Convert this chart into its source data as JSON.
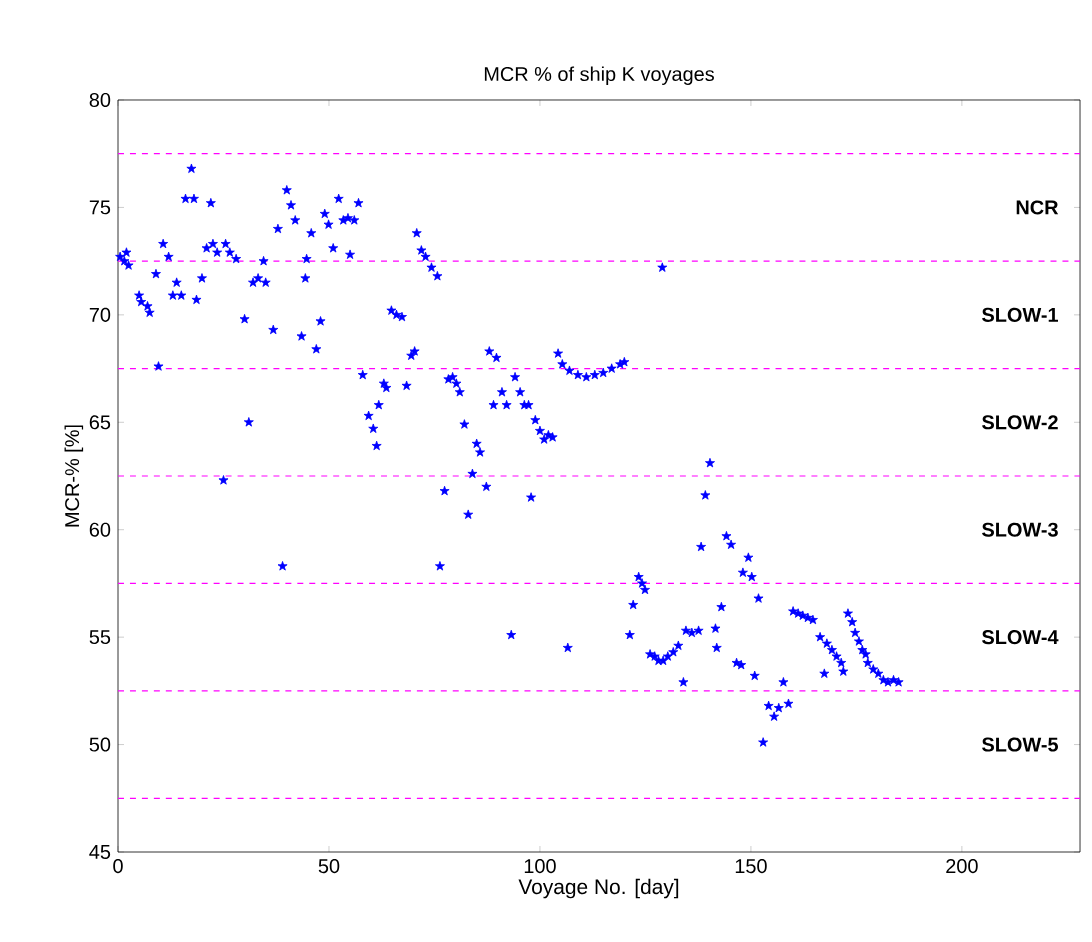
{
  "chart_data": {
    "type": "scatter",
    "title": "MCR % of ship K voyages",
    "xlabel": "Voyage No. [day]",
    "ylabel": "MCR-% [%]",
    "marker": "star",
    "xlim": [
      0,
      228
    ],
    "ylim": [
      45,
      80
    ],
    "xticks": [
      0,
      50,
      100,
      150,
      200
    ],
    "yticks": [
      45,
      50,
      55,
      60,
      65,
      70,
      75,
      80
    ],
    "annotations": [
      "NCR",
      "SLOW-1",
      "SLOW-2",
      "SLOW-3",
      "SLOW-4",
      "SLOW-5"
    ],
    "ref_lines": [
      {
        "axis": "y",
        "value": 77.5,
        "color": "#ff00ff",
        "line_style": "dashed"
      },
      {
        "axis": "y",
        "value": 72.5,
        "color": "#ff00ff",
        "line_style": "dashed"
      },
      {
        "axis": "y",
        "value": 67.5,
        "color": "#ff00ff",
        "line_style": "dashed"
      },
      {
        "axis": "y",
        "value": 62.5,
        "color": "#ff00ff",
        "line_style": "dashed"
      },
      {
        "axis": "y",
        "value": 57.5,
        "color": "#ff00ff",
        "line_style": "dashed"
      },
      {
        "axis": "y",
        "value": 52.5,
        "color": "#ff00ff",
        "line_style": "dashed"
      },
      {
        "axis": "y",
        "value": 47.5,
        "color": "#ff00ff",
        "line_style": "dashed"
      }
    ],
    "series": [
      {
        "color": "#0000ff",
        "x": [
          0.5,
          1.5,
          2.5,
          2,
          5,
          5.5,
          7,
          7.5,
          9,
          9.6,
          10.7,
          12,
          13,
          13.9,
          15,
          16,
          17.4,
          18,
          18.6,
          19.9,
          21,
          22,
          22.5,
          23.5,
          25,
          25.5,
          26.5,
          28,
          30,
          31,
          32,
          33.2,
          34.5,
          35,
          36.8,
          37.9,
          39,
          40,
          41,
          42,
          43.5,
          44.4,
          44.7,
          45.8,
          47,
          48,
          49,
          49.9,
          51,
          52.3,
          53.4,
          54.5,
          55,
          56,
          57,
          58,
          59.4,
          60.5,
          61.3,
          61.8,
          63,
          63.6,
          64.8,
          66,
          67.3,
          68.4,
          69.5,
          70.3,
          70.8,
          71.9,
          72.9,
          74.3,
          75.7,
          76.3,
          77.4,
          78.3,
          79.3,
          80.2,
          81,
          82.1,
          83,
          84,
          85,
          85.8,
          87.3,
          88,
          89,
          89.7,
          91,
          92.1,
          93.2,
          94.1,
          95.3,
          96.3,
          97.3,
          97.9,
          98.9,
          100,
          101,
          102,
          103,
          104.3,
          105.3,
          106.6,
          107,
          109,
          111,
          113,
          115,
          117,
          119,
          120,
          121.3,
          122.1,
          123.4,
          124.2,
          124.9,
          126.1,
          127.2,
          128.1,
          129,
          129.2,
          130.3,
          131.6,
          132.8,
          134,
          134.6,
          136,
          137.6,
          138.2,
          139.2,
          140.3,
          141.6,
          141.9,
          143,
          144.2,
          145.3,
          146.6,
          147.7,
          148.1,
          149.4,
          150.2,
          150.9,
          151.8,
          152.9,
          154.2,
          155.5,
          156.6,
          157.7,
          158.9,
          160,
          161.2,
          162.3,
          163.5,
          164.7,
          166.4,
          167.4,
          168,
          169.2,
          170.3,
          171.4,
          171.9,
          173,
          174,
          174.7,
          175.6,
          176.4,
          177.2,
          177.7,
          179,
          180.2,
          181.4,
          182.5,
          183.8,
          185
        ],
        "values": [
          72.7,
          72.5,
          72.3,
          72.9,
          70.9,
          70.6,
          70.4,
          70.1,
          71.9,
          67.6,
          73.3,
          72.7,
          70.9,
          71.5,
          70.9,
          75.4,
          76.8,
          75.4,
          70.7,
          71.7,
          73.1,
          75.2,
          73.3,
          72.9,
          62.3,
          73.3,
          72.9,
          72.6,
          69.8,
          65.0,
          71.5,
          71.7,
          72.5,
          71.5,
          69.3,
          74.0,
          58.3,
          75.8,
          75.1,
          74.4,
          69.0,
          71.7,
          72.6,
          73.8,
          68.4,
          69.7,
          74.7,
          74.2,
          73.1,
          75.4,
          74.4,
          74.5,
          72.8,
          74.4,
          75.2,
          67.2,
          65.3,
          64.7,
          63.9,
          65.8,
          66.8,
          66.6,
          70.2,
          70.0,
          69.9,
          66.7,
          68.1,
          68.3,
          73.8,
          73.0,
          72.7,
          72.2,
          71.8,
          58.3,
          61.8,
          67.0,
          67.1,
          66.8,
          66.4,
          64.9,
          60.7,
          62.6,
          64.0,
          63.6,
          62.0,
          68.3,
          65.8,
          68.0,
          66.4,
          65.8,
          55.1,
          67.1,
          66.4,
          65.8,
          65.8,
          61.5,
          65.1,
          64.6,
          64.2,
          64.4,
          64.3,
          68.2,
          67.7,
          54.5,
          67.4,
          67.2,
          67.1,
          67.2,
          67.3,
          67.5,
          67.7,
          67.8,
          55.1,
          56.5,
          57.8,
          57.5,
          57.2,
          54.2,
          54.1,
          53.9,
          72.2,
          53.9,
          54.1,
          54.3,
          54.6,
          52.9,
          55.3,
          55.2,
          55.3,
          59.2,
          61.6,
          63.1,
          55.4,
          54.5,
          56.4,
          59.7,
          59.3,
          53.8,
          53.7,
          58.0,
          58.7,
          57.8,
          53.2,
          56.8,
          50.1,
          51.8,
          51.3,
          51.7,
          52.9,
          51.9,
          56.2,
          56.1,
          56.0,
          55.9,
          55.8,
          55.0,
          53.3,
          54.7,
          54.4,
          54.1,
          53.8,
          53.4,
          56.1,
          55.7,
          55.2,
          54.8,
          54.4,
          54.2,
          53.8,
          53.5,
          53.3,
          53.0,
          52.9,
          53.0,
          52.9
        ]
      }
    ]
  }
}
